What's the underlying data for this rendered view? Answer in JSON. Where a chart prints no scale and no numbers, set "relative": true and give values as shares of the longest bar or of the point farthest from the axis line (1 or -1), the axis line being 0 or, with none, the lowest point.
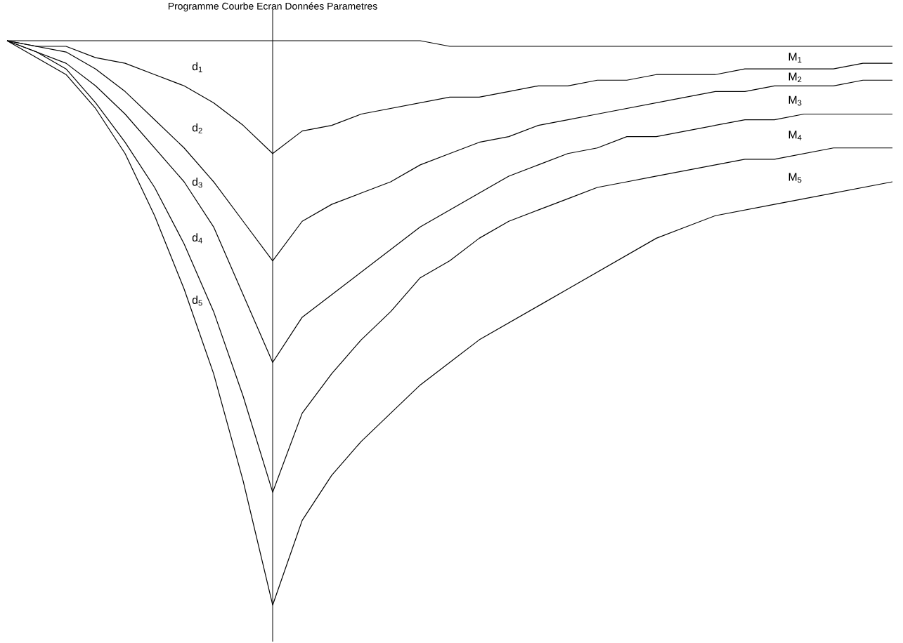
{
  "chart_data": {
    "type": "line",
    "relative": true,
    "title": "Programme Courbe Ecran Données Parametres",
    "categories": [
      null,
      null,
      null,
      null,
      null,
      null,
      null,
      null,
      null,
      null,
      null,
      null,
      null,
      null,
      null,
      null,
      null,
      null,
      null,
      null,
      null,
      null,
      null,
      null,
      null,
      null,
      null,
      null,
      null,
      null,
      null
    ],
    "series": [
      {
        "color": "#000000",
        "values": [
          1.0,
          1.0,
          1.0,
          1.0,
          1.0,
          1.0,
          1.0,
          1.0,
          1.0,
          1.0,
          1.0,
          1.0,
          1.0,
          1.0,
          1.0,
          0.99,
          0.99,
          0.99,
          0.99,
          0.99,
          0.99,
          0.99,
          0.99,
          0.99,
          0.99,
          0.99,
          0.99,
          0.99,
          0.99,
          0.99,
          0.99
        ]
      },
      {
        "color": "#000000",
        "values": [
          1.0,
          0.99,
          0.99,
          0.97,
          0.96,
          0.94,
          0.92,
          0.89,
          0.85,
          0.8,
          0.84,
          0.85,
          0.87,
          0.88,
          0.89,
          0.9,
          0.9,
          0.91,
          0.92,
          0.92,
          0.93,
          0.93,
          0.94,
          0.94,
          0.94,
          0.95,
          0.95,
          0.95,
          0.95,
          0.96,
          0.96
        ]
      },
      {
        "color": "#000000",
        "values": [
          1.0,
          0.99,
          0.98,
          0.95,
          0.91,
          0.86,
          0.81,
          0.75,
          0.68,
          0.61,
          0.68,
          0.71,
          0.73,
          0.75,
          0.78,
          0.8,
          0.82,
          0.83,
          0.85,
          0.86,
          0.87,
          0.88,
          0.89,
          0.9,
          0.91,
          0.91,
          0.92,
          0.92,
          0.92,
          0.93,
          0.93
        ]
      },
      {
        "color": "#000000",
        "values": [
          1.0,
          0.98,
          0.96,
          0.92,
          0.87,
          0.81,
          0.75,
          0.67,
          0.55,
          0.43,
          0.51,
          0.55,
          0.59,
          0.63,
          0.67,
          0.7,
          0.73,
          0.76,
          0.78,
          0.8,
          0.81,
          0.83,
          0.83,
          0.84,
          0.85,
          0.86,
          0.86,
          0.87,
          0.87,
          0.87,
          0.87
        ]
      },
      {
        "color": "#000000",
        "values": [
          1.0,
          0.98,
          0.95,
          0.89,
          0.82,
          0.74,
          0.64,
          0.52,
          0.37,
          0.2,
          0.34,
          0.41,
          0.47,
          0.52,
          0.58,
          0.61,
          0.65,
          0.68,
          0.7,
          0.72,
          0.74,
          0.75,
          0.76,
          0.77,
          0.78,
          0.79,
          0.79,
          0.8,
          0.81,
          0.81,
          0.81
        ]
      },
      {
        "color": "#000000",
        "values": [
          1.0,
          0.97,
          0.94,
          0.88,
          0.8,
          0.69,
          0.56,
          0.41,
          0.22,
          0,
          0.15,
          0.23,
          0.29,
          0.34,
          0.39,
          0.43,
          0.47,
          0.5,
          0.53,
          0.56,
          0.59,
          0.62,
          0.65,
          0.67,
          0.69,
          0.7,
          0.71,
          0.72,
          0.73,
          0.74,
          0.75
        ]
      }
    ],
    "annotations": [
      "d$_{1}$",
      "d$_{2}$",
      "d$_{3}$",
      "d$_{4}$",
      "d$_{5}$",
      "M$_{1}$",
      "M$_{2}$",
      "M$_{3}$",
      "M$_{4}$",
      "M$_{5}$"
    ],
    "marker": "none",
    "line_style": "solid"
  }
}
